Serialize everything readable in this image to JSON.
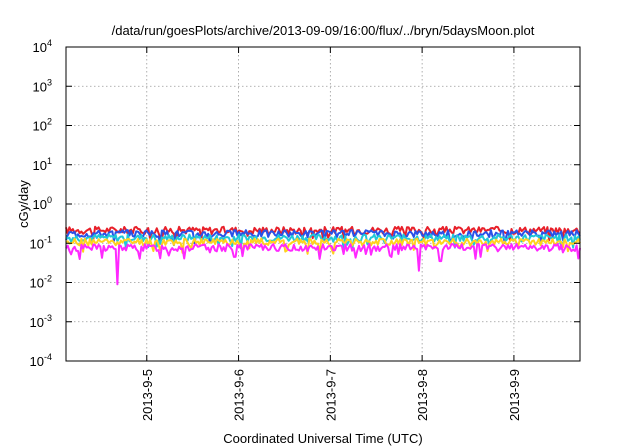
{
  "chart_data": {
    "type": "line",
    "title": "/data/run/goesPlots/archive/2013-09-09/16:00/flux/../bryn/5daysMoon.plot",
    "xlabel": "Coordinated Universal Time (UTC)",
    "ylabel": "cGy/day",
    "yscale": "log",
    "ylim": [
      0.0001,
      10000
    ],
    "y_ticks": [
      {
        "base": "10",
        "exp": "-4"
      },
      {
        "base": "10",
        "exp": "-3"
      },
      {
        "base": "10",
        "exp": "-2"
      },
      {
        "base": "10",
        "exp": "-1"
      },
      {
        "base": "10",
        "exp": "0"
      },
      {
        "base": "10",
        "exp": "1"
      },
      {
        "base": "10",
        "exp": "2"
      },
      {
        "base": "10",
        "exp": "3"
      },
      {
        "base": "10",
        "exp": "4"
      }
    ],
    "x_range_days": [
      4.12,
      9.72
    ],
    "x_ticks": [
      {
        "day": 5,
        "label": "2013-9-5"
      },
      {
        "day": 6,
        "label": "2013-9-6"
      },
      {
        "day": 7,
        "label": "2013-9-7"
      },
      {
        "day": 8,
        "label": "2013-9-8"
      },
      {
        "day": 9,
        "label": "2013-9-9"
      }
    ],
    "grid": true,
    "legend": "none",
    "series": [
      {
        "color": "#e8202a",
        "level": 0.22,
        "dips": []
      },
      {
        "color": "#2a52e8",
        "level": 0.18,
        "dips": []
      },
      {
        "color": "#20c8d8",
        "level": 0.14,
        "dips": []
      },
      {
        "color": "#ffd21e",
        "level": 0.11,
        "dips": []
      },
      {
        "color": "#ff28ff",
        "level": 0.08,
        "dips": [
          [
            4.68,
            0.009
          ],
          [
            5.96,
            0.045
          ],
          [
            6.88,
            0.04
          ],
          [
            7.66,
            0.045
          ],
          [
            7.97,
            0.02
          ],
          [
            8.2,
            0.035
          ],
          [
            8.63,
            0.045
          ]
        ]
      }
    ]
  }
}
